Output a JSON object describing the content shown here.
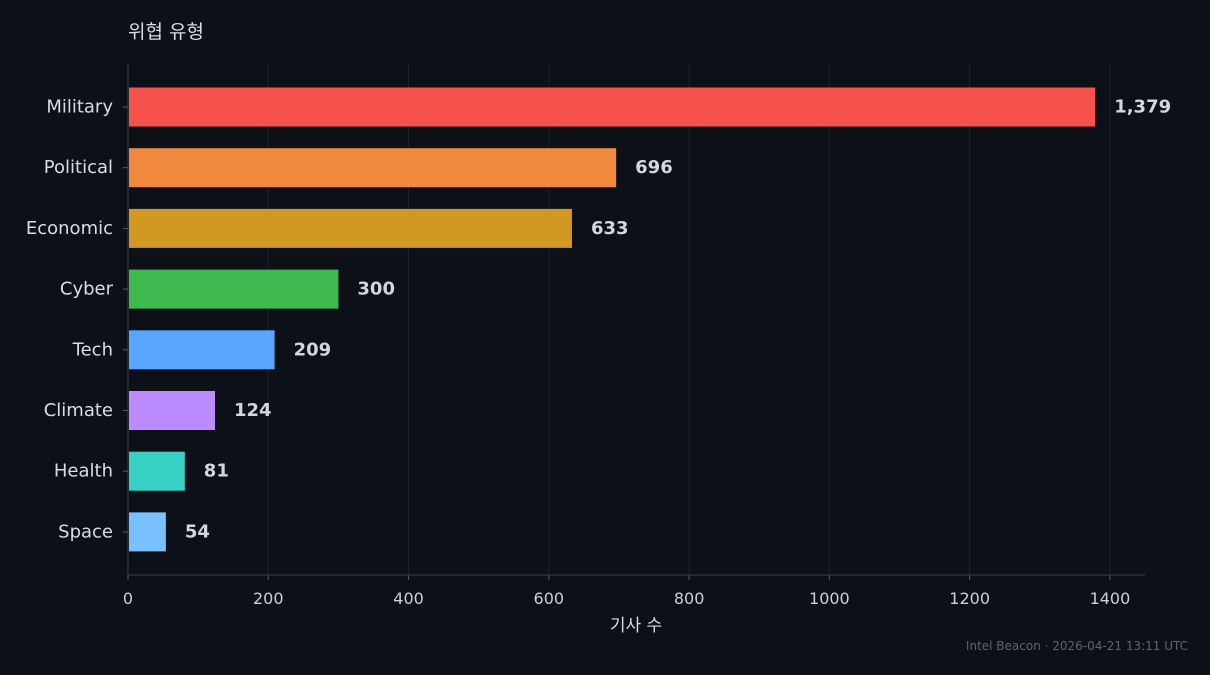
{
  "chart_data": {
    "type": "bar",
    "orientation": "horizontal",
    "title": "위협 유형",
    "xlabel": "기사 수",
    "ylabel": "",
    "categories": [
      "Military",
      "Political",
      "Economic",
      "Cyber",
      "Tech",
      "Climate",
      "Health",
      "Space"
    ],
    "values": [
      1379,
      696,
      633,
      300,
      209,
      124,
      81,
      54
    ],
    "value_labels": [
      "1,379",
      "696",
      "633",
      "300",
      "209",
      "124",
      "81",
      "54"
    ],
    "colors": [
      "#f7514c",
      "#f0883e",
      "#d29922",
      "#3fb950",
      "#58a6ff",
      "#bc8cff",
      "#39d0c4",
      "#79c0ff"
    ],
    "xlim": [
      0,
      1450
    ],
    "xticks": [
      0,
      200,
      400,
      600,
      800,
      1000,
      1200,
      1400
    ],
    "grid": "vertical",
    "legend": "none",
    "background": "#0d1017"
  },
  "footer": {
    "text": "Intel Beacon · 2026-04-21 13:11 UTC"
  }
}
